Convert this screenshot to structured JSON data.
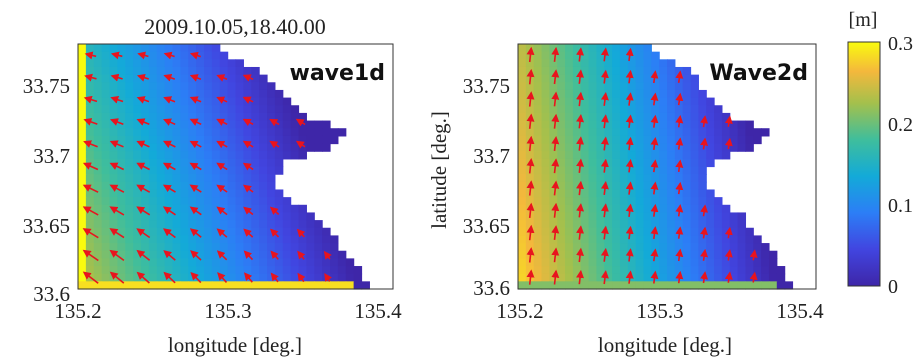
{
  "figure_title": "2009.10.05,18.40.00",
  "colorbar": {
    "unit_label": "[m]",
    "ticks": [
      "0.3",
      "0.2",
      "0.1",
      "0"
    ],
    "range": [
      0,
      0.3
    ],
    "colormap": "parula"
  },
  "chart_data": [
    {
      "type": "heatmap",
      "title": "wave1d",
      "xlabel": "longitude [deg.]",
      "ylabel": "",
      "xlim": [
        135.2,
        135.41
      ],
      "ylim": [
        33.6,
        33.78
      ],
      "x_ticks": [
        "135.2",
        "135.3",
        "135.4"
      ],
      "y_ticks": [
        "33.6",
        "33.65",
        "33.7",
        "33.75"
      ],
      "value_range_m": [
        0,
        0.3
      ],
      "field": "significant wave height with red direction vectors",
      "notes": "land masked white on east side; max values ~0.3 m along west and south boundaries"
    },
    {
      "type": "heatmap",
      "title": "Wave2d",
      "xlabel": "longitude [deg.]",
      "ylabel": "latitude [deg.]",
      "xlim": [
        135.2,
        135.41
      ],
      "ylim": [
        33.6,
        33.78
      ],
      "x_ticks": [
        "135.2",
        "135.3",
        "135.4"
      ],
      "y_ticks": [
        "33.6",
        "33.65",
        "33.7",
        "33.75"
      ],
      "value_range_m": [
        0,
        0.3
      ],
      "field": "significant wave height with red direction vectors",
      "notes": "west boundary ~0.25 m decreasing eastward; vectors point northward"
    }
  ]
}
